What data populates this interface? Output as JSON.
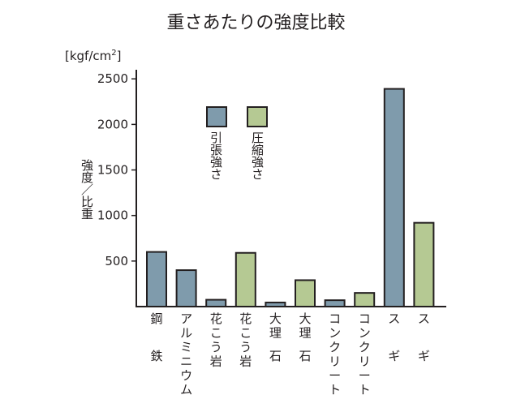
{
  "chart_data": {
    "type": "bar",
    "title": "重さあたりの強度比較",
    "unit": "[kgf/cm",
    "unit_sup": "2",
    "unit_close": "]",
    "ylabel": "強度／比重",
    "ylim": [
      0,
      2600
    ],
    "yticks": [
      "500",
      "1000",
      "1500",
      "2000",
      "2500"
    ],
    "ytick_values": [
      500,
      1000,
      1500,
      2000,
      2500
    ],
    "categories": [
      {
        "line1": "鋼",
        "line2": "鉄"
      },
      {
        "line1": "アルミニウム",
        "line2": ""
      },
      {
        "line1": "花こう岩",
        "line2": ""
      },
      {
        "line1": "花こう岩",
        "line2": ""
      },
      {
        "line1": "大理",
        "line2": "石"
      },
      {
        "line1": "大理",
        "line2": "石"
      },
      {
        "line1": "コンクリート",
        "line2": ""
      },
      {
        "line1": "コンクリート",
        "line2": ""
      },
      {
        "line1": "ス",
        "line2": "ギ"
      },
      {
        "line1": "ス",
        "line2": "ギ"
      }
    ],
    "values": [
      600,
      400,
      75,
      590,
      45,
      290,
      70,
      150,
      2390,
      920
    ],
    "bar_series": [
      "tension",
      "tension",
      "tension",
      "compression",
      "tension",
      "compression",
      "tension",
      "compression",
      "tension",
      "compression"
    ],
    "series": [
      {
        "key": "tension",
        "name": "引張強さ",
        "color": "#7f9bac"
      },
      {
        "key": "compression",
        "name": "圧縮強さ",
        "color": "#b5c993"
      }
    ],
    "legend": "upper-center",
    "grid": false
  }
}
